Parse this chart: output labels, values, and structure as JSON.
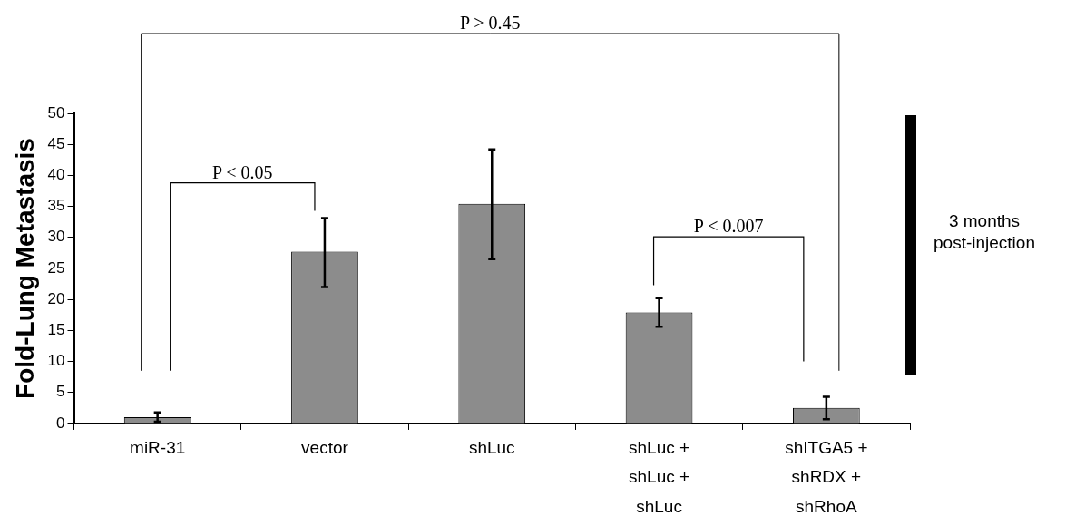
{
  "chart_data": {
    "type": "bar",
    "ylabel": "Fold-Lung Metastasis",
    "categories": [
      "miR-31",
      "vector",
      "shLuc",
      "shLuc + shLuc + shLuc",
      "shITGA5 + shRDX + shRhoA"
    ],
    "values": [
      1.0,
      27.7,
      35.4,
      17.9,
      2.5
    ],
    "errors": [
      [
        0.3,
        1.8
      ],
      [
        22.0,
        33.1
      ],
      [
        26.5,
        44.2
      ],
      [
        15.6,
        20.2
      ],
      [
        0.7,
        4.3
      ]
    ],
    "color": "#8c8c8c",
    "ylim": [
      0,
      50
    ],
    "yticks": [
      0,
      5,
      10,
      15,
      20,
      25,
      30,
      35,
      40,
      45,
      50
    ],
    "grid": false,
    "legend": false,
    "annotations": [
      "P > 0.45",
      "P < 0.05",
      "P < 0.007",
      "3 months post-injection"
    ]
  }
}
